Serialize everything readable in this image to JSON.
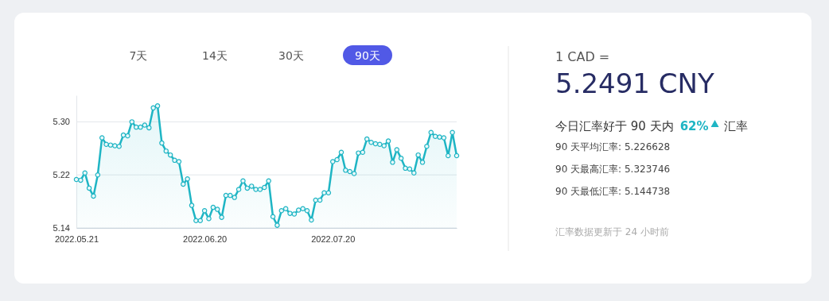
{
  "chart_data": {
    "type": "area",
    "color": "#1fb5c4",
    "marker": "circle",
    "grid": "y",
    "x": [
      "2022-05-21",
      "2022-05-22",
      "2022-05-23",
      "2022-05-24",
      "2022-05-25",
      "2022-05-26",
      "2022-05-27",
      "2022-05-28",
      "2022-05-29",
      "2022-05-30",
      "2022-05-31",
      "2022-06-01",
      "2022-06-02",
      "2022-06-03",
      "2022-06-04",
      "2022-06-05",
      "2022-06-06",
      "2022-06-07",
      "2022-06-08",
      "2022-06-09",
      "2022-06-10",
      "2022-06-11",
      "2022-06-12",
      "2022-06-13",
      "2022-06-14",
      "2022-06-15",
      "2022-06-16",
      "2022-06-17",
      "2022-06-18",
      "2022-06-19",
      "2022-06-20",
      "2022-06-21",
      "2022-06-22",
      "2022-06-23",
      "2022-06-24",
      "2022-06-25",
      "2022-06-26",
      "2022-06-27",
      "2022-06-28",
      "2022-06-29",
      "2022-06-30",
      "2022-07-01",
      "2022-07-02",
      "2022-07-03",
      "2022-07-04",
      "2022-07-05",
      "2022-07-06",
      "2022-07-07",
      "2022-07-08",
      "2022-07-09",
      "2022-07-10",
      "2022-07-11",
      "2022-07-12",
      "2022-07-13",
      "2022-07-14",
      "2022-07-15",
      "2022-07-16",
      "2022-07-17",
      "2022-07-18",
      "2022-07-19",
      "2022-07-20",
      "2022-07-21",
      "2022-07-22",
      "2022-07-23",
      "2022-07-24",
      "2022-07-25",
      "2022-07-26",
      "2022-07-27",
      "2022-07-28",
      "2022-07-29",
      "2022-07-30",
      "2022-07-31",
      "2022-08-01",
      "2022-08-02",
      "2022-08-03",
      "2022-08-04",
      "2022-08-05",
      "2022-08-06",
      "2022-08-07",
      "2022-08-08",
      "2022-08-09",
      "2022-08-10",
      "2022-08-11",
      "2022-08-12",
      "2022-08-13",
      "2022-08-14",
      "2022-08-15",
      "2022-08-16",
      "2022-08-17",
      "2022-08-18"
    ],
    "values": [
      5.213,
      5.212,
      5.223,
      5.2,
      5.188,
      5.22,
      5.276,
      5.266,
      5.265,
      5.264,
      5.263,
      5.28,
      5.279,
      5.3,
      5.292,
      5.292,
      5.295,
      5.291,
      5.321,
      5.324,
      5.268,
      5.256,
      5.25,
      5.242,
      5.24,
      5.206,
      5.214,
      5.174,
      5.151,
      5.151,
      5.166,
      5.154,
      5.171,
      5.168,
      5.156,
      5.189,
      5.189,
      5.186,
      5.198,
      5.211,
      5.2,
      5.203,
      5.198,
      5.198,
      5.201,
      5.211,
      5.157,
      5.144,
      5.166,
      5.169,
      5.162,
      5.161,
      5.167,
      5.169,
      5.166,
      5.152,
      5.182,
      5.182,
      5.193,
      5.193,
      5.24,
      5.243,
      5.254,
      5.227,
      5.225,
      5.222,
      5.253,
      5.254,
      5.274,
      5.269,
      5.267,
      5.266,
      5.264,
      5.271,
      5.239,
      5.258,
      5.245,
      5.23,
      5.229,
      5.223,
      5.25,
      5.239,
      5.263,
      5.284,
      5.278,
      5.277,
      5.276,
      5.249,
      5.284,
      5.249
    ],
    "xlim": [
      "2022-05-21",
      "2022-08-18"
    ],
    "xticks": [
      {
        "value": "2022-05-21",
        "label": "2022.05.21"
      },
      {
        "value": "2022-06-20",
        "label": "2022.06.20"
      },
      {
        "value": "2022-07-20",
        "label": "2022.07.20"
      }
    ],
    "ylim": [
      5.14,
      5.34
    ],
    "yticks": [
      5.14,
      5.22,
      {
        "value": 5.3,
        "label": "5.30"
      }
    ],
    "annotations": [
      "7天",
      "14天",
      "30天",
      "90天",
      "1 CAD =",
      "5.2491 CNY",
      "今日汇率好于 90 天内",
      "62%",
      "汇率",
      "90 天平均汇率: 5.226628",
      "90 天最高汇率: 5.323746",
      "90 天最低汇率: 5.144738",
      "汇率数据更新于 24 小时前"
    ]
  }
}
